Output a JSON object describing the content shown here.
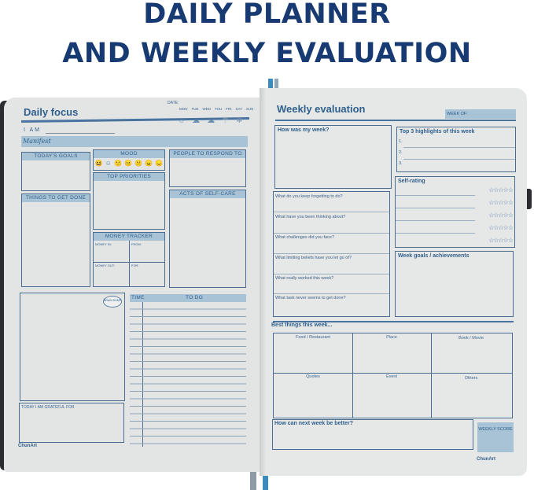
{
  "headline": {
    "line1": "DAILY PLANNER",
    "line2": "AND WEEKLY EVALUATION"
  },
  "colors": {
    "headline": "#173a72",
    "accent": "#a8c3d6",
    "ink": "#2f5f8c",
    "paper": "#e3e5e5"
  },
  "daily": {
    "title": "Daily focus",
    "date_label": "DATE:",
    "days": [
      "MON",
      "TUE",
      "WED",
      "THU",
      "FRI",
      "SAT",
      "SUN"
    ],
    "weather_icons": [
      "sun-icon",
      "partly-cloudy-icon",
      "cloud-icon",
      "rain-icon",
      "snowflake-icon"
    ],
    "i_am": "I AM",
    "manifest": "Manifest",
    "todays_goals": "TODAY'S GOALS",
    "things_to_get_done": "THINGS TO GET DONE",
    "mood": "MOOD",
    "mood_faces": [
      "😆",
      "☺",
      "🙂",
      "😐",
      "😕",
      "😠",
      "😞"
    ],
    "top_priorities": "TOP PRIORITIES",
    "money_tracker": "MONEY TRACKER",
    "money_in": "MONEY IN:",
    "from": "FROM:",
    "money_out": "MONEY OUT:",
    "for": "FOR:",
    "people": "PEOPLE TO RESPOND TO",
    "self_care": "ACTS OF SELF-CARE",
    "brain_dump": "BRAIN DUMP",
    "time": "TIME",
    "todo": "TO DO",
    "grateful": "TODAY I AM GRATEFUL FOR",
    "logo": "ChunArt"
  },
  "weekly": {
    "title": "Weekly evaluation",
    "week_of": "WEEK OF:",
    "how_was": "How was my week?",
    "questions": [
      "What do you keep forgetting to do?",
      "What have you been thinking about?",
      "What challenges did you face?",
      "What limiting beliefs have you let go of?",
      "What really worked this week?",
      "What task never seems to get done?"
    ],
    "highlights": "Top 3 highlights of this week",
    "highlight_nums": [
      "1.",
      "2.",
      "3."
    ],
    "self_rating": "Self-rating",
    "rating_stars": "☆☆☆☆☆",
    "goals": "Week goals / achievements",
    "best": "Best things this week...",
    "best_cells": [
      "Food / Restaurant",
      "Place",
      "Book / Movie",
      "Quotes",
      "Event",
      "Others"
    ],
    "better": "How can next week be better?",
    "score": "WEEKLY SCORE",
    "logo": "ChunArt"
  }
}
